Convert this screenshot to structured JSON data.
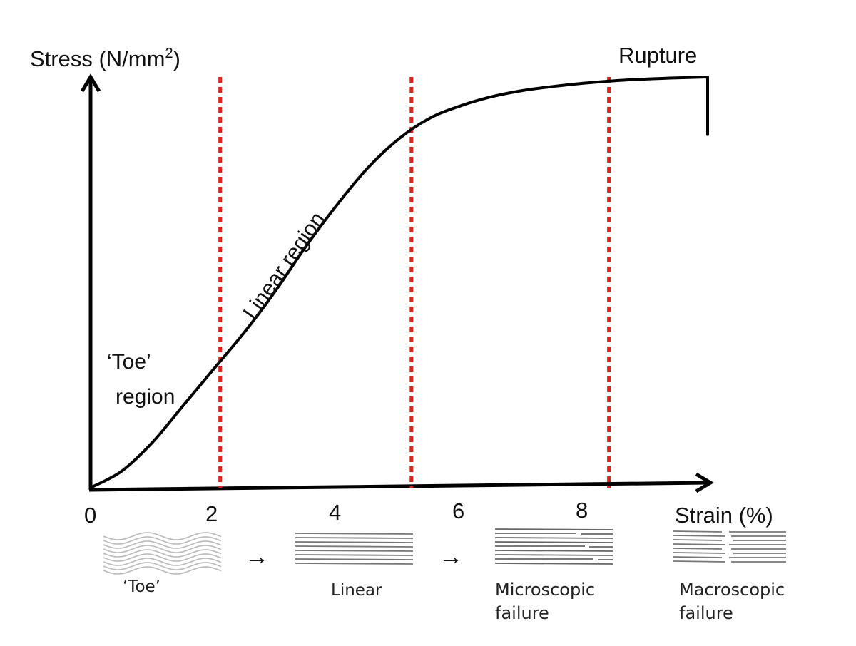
{
  "chart_data": {
    "type": "line",
    "title": "",
    "ylabel_base": "Stress (N/mm",
    "ylabel_sup": "2",
    "ylabel_close": ")",
    "xlabel": "Strain (%)",
    "xlim": [
      0,
      10.2
    ],
    "x_ticks": [
      "0",
      "2",
      "4",
      "6",
      "8"
    ],
    "x_tick_values": [
      0,
      2,
      4,
      6,
      8
    ],
    "boundaries": [
      2.1,
      5.2,
      8.4
    ],
    "boundary_color": "#e0241b",
    "series": [
      {
        "x": [
          0,
          0.5,
          1.0,
          1.5,
          2.0,
          2.5,
          3.0,
          3.5,
          4.0,
          4.5,
          5.0,
          5.5,
          6.0,
          6.5,
          7.0,
          7.5,
          8.0,
          8.5,
          9.0,
          9.5,
          10.0
        ],
        "y": [
          0,
          0.04,
          0.11,
          0.2,
          0.29,
          0.38,
          0.48,
          0.59,
          0.69,
          0.78,
          0.85,
          0.9,
          0.93,
          0.952,
          0.967,
          0.977,
          0.985,
          0.991,
          0.995,
          0.998,
          1.0
        ],
        "color": "#000000"
      }
    ],
    "rupture_drop_to": 0.86,
    "annotations": {
      "toe_line1": "‘Toe’",
      "toe_line2": "region",
      "linear": "Linear region",
      "rupture": "Rupture"
    }
  },
  "stages": [
    {
      "label1": "‘Toe’",
      "label2": ""
    },
    {
      "label1": "Linear",
      "label2": ""
    },
    {
      "label1": "Microscopic",
      "label2": "failure"
    },
    {
      "label1": "Macroscopic",
      "label2": "failure"
    }
  ],
  "stage_arrow_glyph": "→"
}
